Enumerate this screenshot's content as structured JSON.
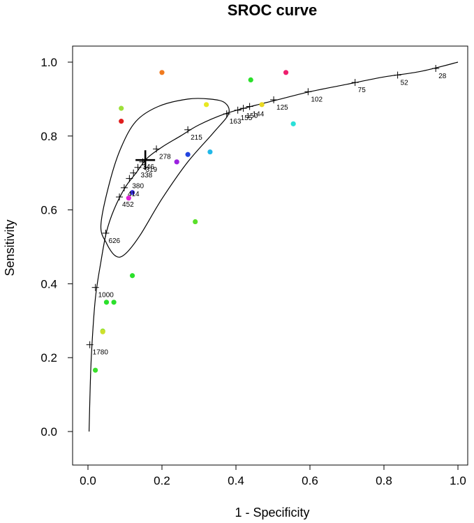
{
  "chart_data": {
    "type": "scatter",
    "title": "SROC curve",
    "xlabel": "1 - Specificity",
    "ylabel": "Sensitivity",
    "xlim": [
      0,
      1
    ],
    "ylim": [
      0,
      1
    ],
    "xticks": [
      0.0,
      0.2,
      0.4,
      0.6,
      0.8,
      1.0
    ],
    "yticks": [
      0.0,
      0.2,
      0.4,
      0.6,
      0.8,
      1.0
    ],
    "x_tick_labels": [
      "0.0",
      "0.2",
      "0.4",
      "0.6",
      "0.8",
      "1.0"
    ],
    "y_tick_labels": [
      "0.0",
      "0.2",
      "0.4",
      "0.6",
      "0.8",
      "1.0"
    ],
    "grid": false,
    "curve": [
      [
        0.003,
        0.0
      ],
      [
        0.006,
        0.12
      ],
      [
        0.01,
        0.22
      ],
      [
        0.02,
        0.36
      ],
      [
        0.035,
        0.46
      ],
      [
        0.05,
        0.54
      ],
      [
        0.07,
        0.6
      ],
      [
        0.1,
        0.66
      ],
      [
        0.13,
        0.7
      ],
      [
        0.16,
        0.74
      ],
      [
        0.2,
        0.77
      ],
      [
        0.25,
        0.8
      ],
      [
        0.3,
        0.83
      ],
      [
        0.37,
        0.86
      ],
      [
        0.44,
        0.88
      ],
      [
        0.52,
        0.9
      ],
      [
        0.6,
        0.92
      ],
      [
        0.7,
        0.94
      ],
      [
        0.8,
        0.96
      ],
      [
        0.9,
        0.975
      ],
      [
        1.0,
        1.0
      ]
    ],
    "summary_point": {
      "x": 0.155,
      "y": 0.735
    },
    "confidence_region": [
      [
        0.035,
        0.56
      ],
      [
        0.06,
        0.68
      ],
      [
        0.09,
        0.77
      ],
      [
        0.13,
        0.84
      ],
      [
        0.19,
        0.88
      ],
      [
        0.27,
        0.9
      ],
      [
        0.33,
        0.9
      ],
      [
        0.37,
        0.89
      ],
      [
        0.38,
        0.86
      ],
      [
        0.34,
        0.81
      ],
      [
        0.27,
        0.73
      ],
      [
        0.2,
        0.63
      ],
      [
        0.14,
        0.53
      ],
      [
        0.1,
        0.48
      ],
      [
        0.075,
        0.475
      ],
      [
        0.05,
        0.51
      ]
    ],
    "threshold_points": [
      {
        "x": 0.005,
        "y": 0.235,
        "label": "1780"
      },
      {
        "x": 0.02,
        "y": 0.39,
        "label": "1000"
      },
      {
        "x": 0.048,
        "y": 0.537,
        "label": "626"
      },
      {
        "x": 0.085,
        "y": 0.635,
        "label": "452"
      },
      {
        "x": 0.098,
        "y": 0.66,
        "label": ""
      },
      {
        "x": 0.112,
        "y": 0.685,
        "label": "380"
      },
      {
        "x": 0.123,
        "y": 0.7,
        "label": ""
      },
      {
        "x": 0.135,
        "y": 0.715,
        "label": "338"
      },
      {
        "x": 0.148,
        "y": 0.73,
        "label": "319"
      },
      {
        "x": 0.185,
        "y": 0.765,
        "label": "278"
      },
      {
        "x": 0.27,
        "y": 0.817,
        "label": "215"
      },
      {
        "x": 0.375,
        "y": 0.86,
        "label": "163"
      },
      {
        "x": 0.405,
        "y": 0.87,
        "label": "155"
      },
      {
        "x": 0.42,
        "y": 0.875,
        "label": "150"
      },
      {
        "x": 0.437,
        "y": 0.88,
        "label": "144"
      },
      {
        "x": 0.502,
        "y": 0.898,
        "label": "125"
      },
      {
        "x": 0.595,
        "y": 0.92,
        "label": "102"
      },
      {
        "x": 0.722,
        "y": 0.945,
        "label": "75"
      },
      {
        "x": 0.837,
        "y": 0.965,
        "label": "52"
      },
      {
        "x": 0.94,
        "y": 0.983,
        "label": "28"
      }
    ],
    "extra_labels": [
      {
        "x": 0.115,
        "y": 0.645,
        "label": "414"
      },
      {
        "x": 0.155,
        "y": 0.718,
        "label": "346"
      }
    ],
    "study_points": [
      {
        "x": 0.2,
        "y": 0.972,
        "color": "#f07a1e"
      },
      {
        "x": 0.535,
        "y": 0.972,
        "color": "#ee1f6e"
      },
      {
        "x": 0.44,
        "y": 0.952,
        "color": "#2be02b"
      },
      {
        "x": 0.09,
        "y": 0.875,
        "color": "#9ee03a"
      },
      {
        "x": 0.32,
        "y": 0.885,
        "color": "#e8e822"
      },
      {
        "x": 0.47,
        "y": 0.885,
        "color": "#e8d822"
      },
      {
        "x": 0.09,
        "y": 0.84,
        "color": "#e01e1e"
      },
      {
        "x": 0.555,
        "y": 0.833,
        "color": "#2ae0d8"
      },
      {
        "x": 0.33,
        "y": 0.757,
        "color": "#21b8e8"
      },
      {
        "x": 0.27,
        "y": 0.75,
        "color": "#2244e0"
      },
      {
        "x": 0.24,
        "y": 0.73,
        "color": "#9b21e0"
      },
      {
        "x": 0.12,
        "y": 0.647,
        "color": "#3a2ee0"
      },
      {
        "x": 0.11,
        "y": 0.632,
        "color": "#e021d6"
      },
      {
        "x": 0.29,
        "y": 0.568,
        "color": "#5ae02a"
      },
      {
        "x": 0.12,
        "y": 0.422,
        "color": "#2be02b"
      },
      {
        "x": 0.05,
        "y": 0.35,
        "color": "#2be02b"
      },
      {
        "x": 0.07,
        "y": 0.35,
        "color": "#2be02b"
      },
      {
        "x": 0.04,
        "y": 0.272,
        "color": "#7be02b"
      },
      {
        "x": 0.04,
        "y": 0.27,
        "color": "#cde02b"
      },
      {
        "x": 0.02,
        "y": 0.166,
        "color": "#3ae02b"
      }
    ]
  }
}
